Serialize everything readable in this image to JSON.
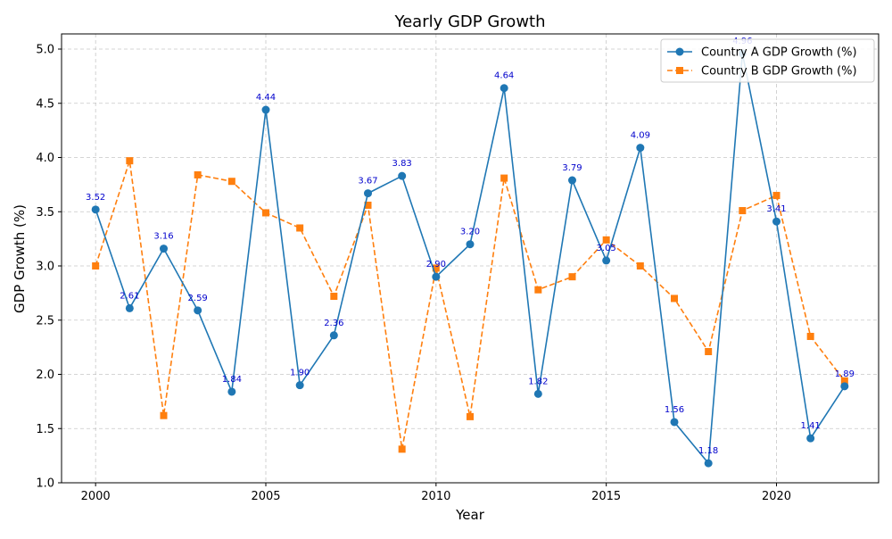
{
  "chart_data": {
    "type": "line",
    "title": "Yearly GDP Growth",
    "xlabel": "Year",
    "ylabel": "GDP Growth (%)",
    "xlim": [
      1999,
      2023
    ],
    "ylim": [
      1.0,
      5.14
    ],
    "x_ticks": [
      2000,
      2005,
      2010,
      2015,
      2020
    ],
    "x_tick_labels": [
      "2000",
      "2005",
      "2010",
      "2015",
      "2020"
    ],
    "y_ticks": [
      1.0,
      1.5,
      2.0,
      2.5,
      3.0,
      3.5,
      4.0,
      4.5,
      5.0
    ],
    "y_tick_labels": [
      "1.0",
      "1.5",
      "2.0",
      "2.5",
      "3.0",
      "3.5",
      "4.0",
      "4.5",
      "5.0"
    ],
    "grid": true,
    "legend_position": "top-right",
    "x": [
      2000,
      2001,
      2002,
      2003,
      2004,
      2005,
      2006,
      2007,
      2008,
      2009,
      2010,
      2011,
      2012,
      2013,
      2014,
      2015,
      2016,
      2017,
      2018,
      2019,
      2020,
      2021,
      2022
    ],
    "series": [
      {
        "name": "Country A GDP Growth (%)",
        "color": "#1f77b4",
        "line_style": "solid",
        "marker": "circle",
        "show_data_labels": true,
        "values": [
          3.52,
          2.61,
          3.16,
          2.59,
          1.84,
          4.44,
          1.9,
          2.36,
          3.67,
          3.83,
          2.9,
          3.2,
          4.64,
          1.82,
          3.79,
          3.05,
          4.09,
          1.56,
          1.18,
          4.96,
          3.41,
          1.41,
          1.89
        ],
        "data_labels": [
          "3.52",
          "2.61",
          "3.16",
          "2.59",
          "1.84",
          "4.44",
          "1.90",
          "2.36",
          "3.67",
          "3.83",
          "2.90",
          "3.20",
          "4.64",
          "1.82",
          "3.79",
          "3.05",
          "4.09",
          "1.56",
          "1.18",
          "4.96",
          "3.41",
          "1.41",
          "1.89"
        ]
      },
      {
        "name": "Country B GDP Growth (%)",
        "color": "#ff7f0e",
        "line_style": "dashed",
        "marker": "square",
        "show_data_labels": false,
        "values": [
          3.0,
          3.97,
          1.62,
          3.84,
          3.78,
          3.49,
          3.35,
          2.72,
          3.56,
          1.31,
          2.98,
          1.61,
          3.81,
          2.78,
          2.9,
          3.24,
          3.0,
          2.7,
          2.21,
          3.51,
          3.65,
          2.35,
          1.94
        ]
      }
    ],
    "data_label_color": "#0000cc"
  }
}
